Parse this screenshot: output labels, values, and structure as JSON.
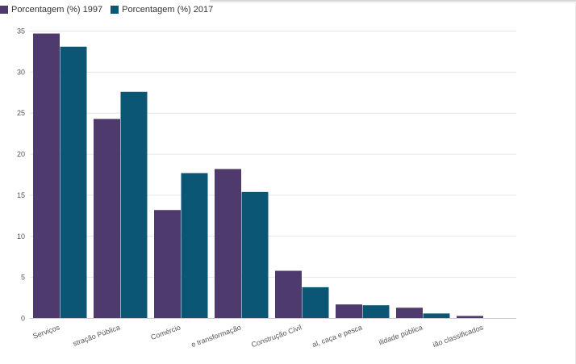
{
  "chart_data": {
    "type": "bar",
    "title": "",
    "xlabel": "",
    "ylabel": "",
    "ylim": [
      0,
      35
    ],
    "yticks": [
      0,
      5,
      10,
      15,
      20,
      25,
      30,
      35
    ],
    "grid": true,
    "legend_position": "top-left",
    "categories": [
      "Serviços",
      "stração Pública",
      "Comércio",
      "e transformação",
      "Construção Civil",
      "al, caça e pesca",
      "ilidade pública",
      "ião classificados"
    ],
    "series": [
      {
        "name": "Porcentagem (%) 1997",
        "color": "#4f3a6e",
        "values": [
          34.7,
          24.3,
          13.2,
          18.2,
          5.8,
          1.7,
          1.3,
          0.3
        ]
      },
      {
        "name": "Porcentagem (%) 2017",
        "color": "#0b5575",
        "values": [
          33.1,
          27.6,
          17.7,
          15.4,
          3.8,
          1.6,
          0.6,
          0
        ]
      }
    ]
  }
}
